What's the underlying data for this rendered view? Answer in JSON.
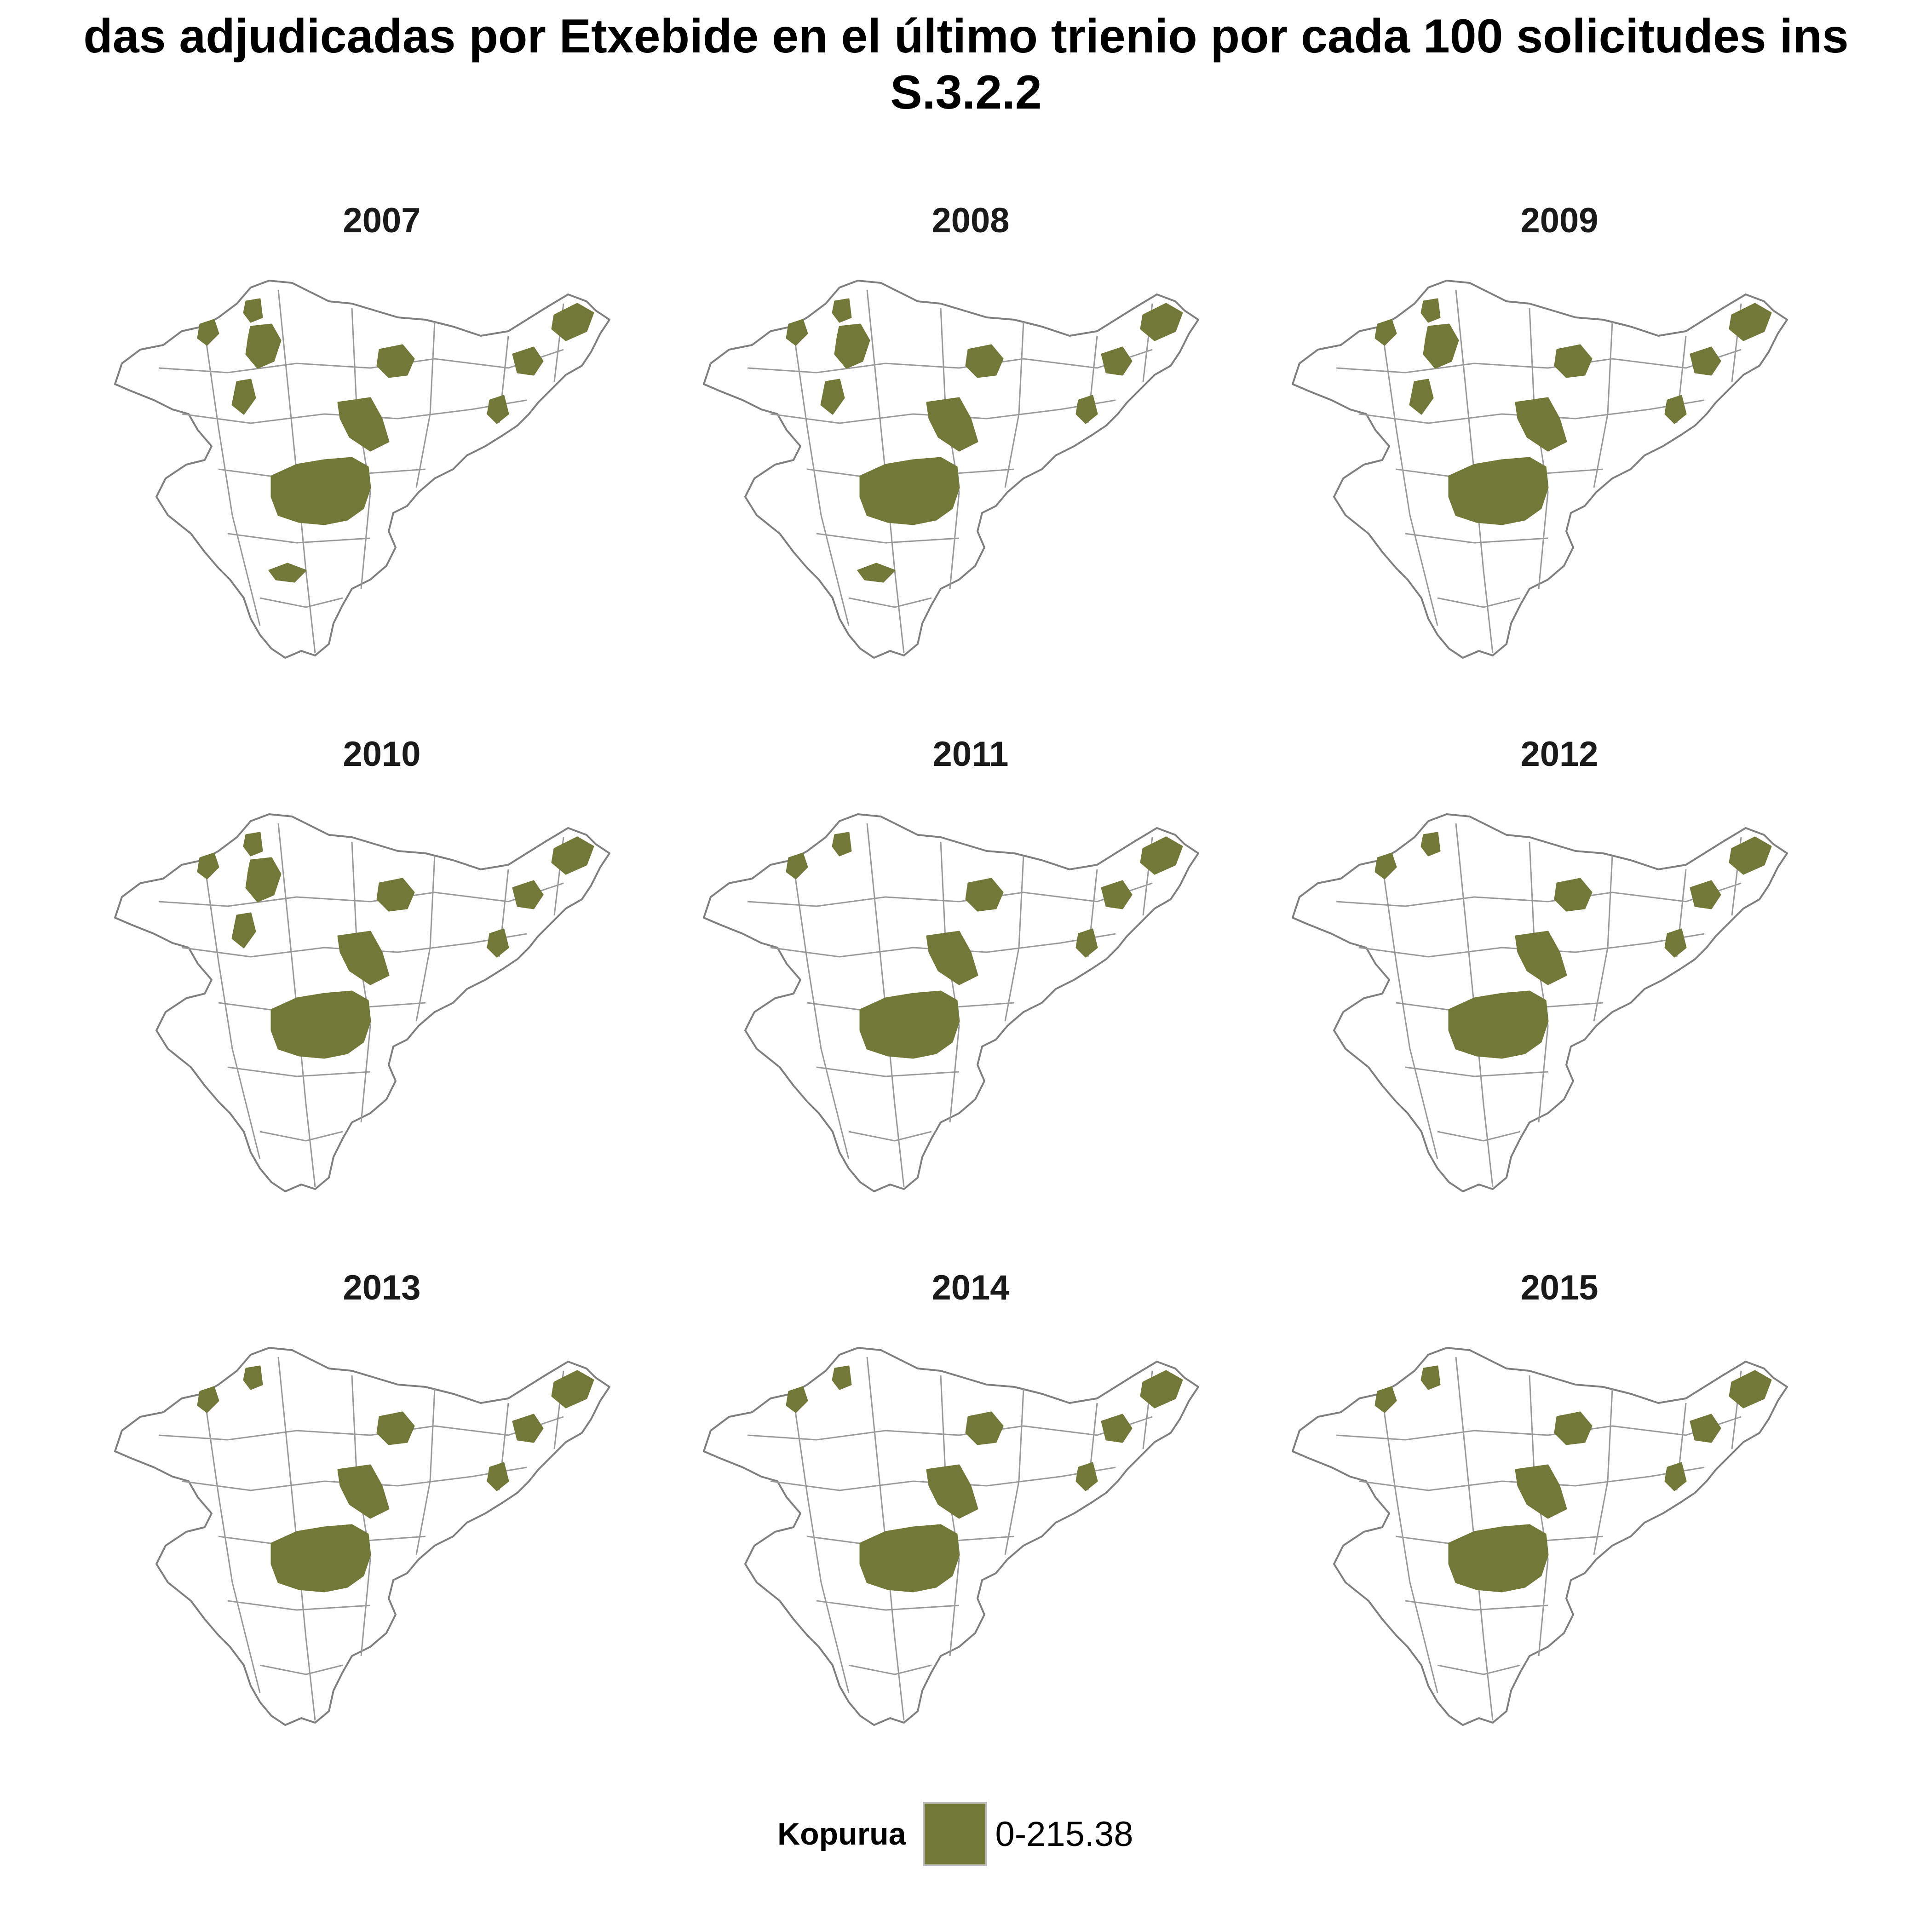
{
  "title": {
    "line1": "das adjudicadas por Etxebide en el último trienio por cada 100 solicitudes ins",
    "line2": "S.3.2.2"
  },
  "panels": [
    {
      "year": "2007",
      "highlights": [
        "west-coast",
        "bilbao-area",
        "east-coast",
        "centre",
        "south-big",
        "south-small"
      ]
    },
    {
      "year": "2008",
      "highlights": [
        "west-coast",
        "bilbao-area",
        "east-coast",
        "centre",
        "south-big",
        "south-small"
      ]
    },
    {
      "year": "2009",
      "highlights": [
        "west-coast",
        "bilbao-area",
        "centre",
        "east-coast",
        "south-big"
      ]
    },
    {
      "year": "2010",
      "highlights": [
        "west-coast",
        "bilbao-area",
        "centre",
        "east-coast",
        "south-big"
      ]
    },
    {
      "year": "2011",
      "highlights": [
        "west-coast",
        "centre",
        "east-coast",
        "south-big"
      ]
    },
    {
      "year": "2012",
      "highlights": [
        "west-coast",
        "centre",
        "east-coast",
        "south-big"
      ]
    },
    {
      "year": "2013",
      "highlights": [
        "west-coast",
        "centre",
        "east-coast",
        "south-big"
      ]
    },
    {
      "year": "2014",
      "highlights": [
        "west-coast",
        "centre",
        "east-coast",
        "south-big"
      ]
    },
    {
      "year": "2015",
      "highlights": [
        "west-coast",
        "centre",
        "east-coast",
        "south-big"
      ]
    }
  ],
  "legend": {
    "title": "Kopurua",
    "label": "0-215.38",
    "color": "#727838"
  },
  "colors": {
    "highlight": "#727838",
    "border": "#7f7f7f",
    "background": "#ffffff"
  }
}
